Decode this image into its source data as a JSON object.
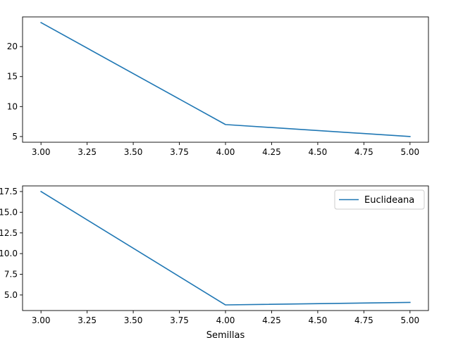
{
  "chart_data": [
    {
      "type": "line",
      "x": [
        3.0,
        4.0,
        5.0
      ],
      "series": [
        {
          "values": [
            24.0,
            7.0,
            5.0
          ],
          "color": "#1f77b4"
        }
      ],
      "xlim": [
        2.9,
        5.1
      ],
      "ylim": [
        4.05,
        24.95
      ],
      "xticks": [
        "3.00",
        "3.25",
        "3.50",
        "3.75",
        "4.00",
        "4.25",
        "4.50",
        "4.75",
        "5.00"
      ],
      "yticks": [
        "5",
        "10",
        "15",
        "20"
      ],
      "xlabel": "",
      "ylabel": "",
      "grid": false,
      "legend": null
    },
    {
      "type": "line",
      "x": [
        3.0,
        4.0,
        5.0
      ],
      "series": [
        {
          "name": "Euclideana",
          "values": [
            17.5,
            3.8,
            4.1
          ],
          "color": "#1f77b4"
        }
      ],
      "xlim": [
        2.9,
        5.1
      ],
      "ylim": [
        3.12,
        18.18
      ],
      "xticks": [
        "3.00",
        "3.25",
        "3.50",
        "3.75",
        "4.00",
        "4.25",
        "4.50",
        "4.75",
        "5.00"
      ],
      "yticks": [
        "5.0",
        "7.5",
        "10.0",
        "12.5",
        "15.0",
        "17.5"
      ],
      "xlabel": "Semillas",
      "ylabel": "",
      "grid": false,
      "legend": "top-right"
    }
  ]
}
